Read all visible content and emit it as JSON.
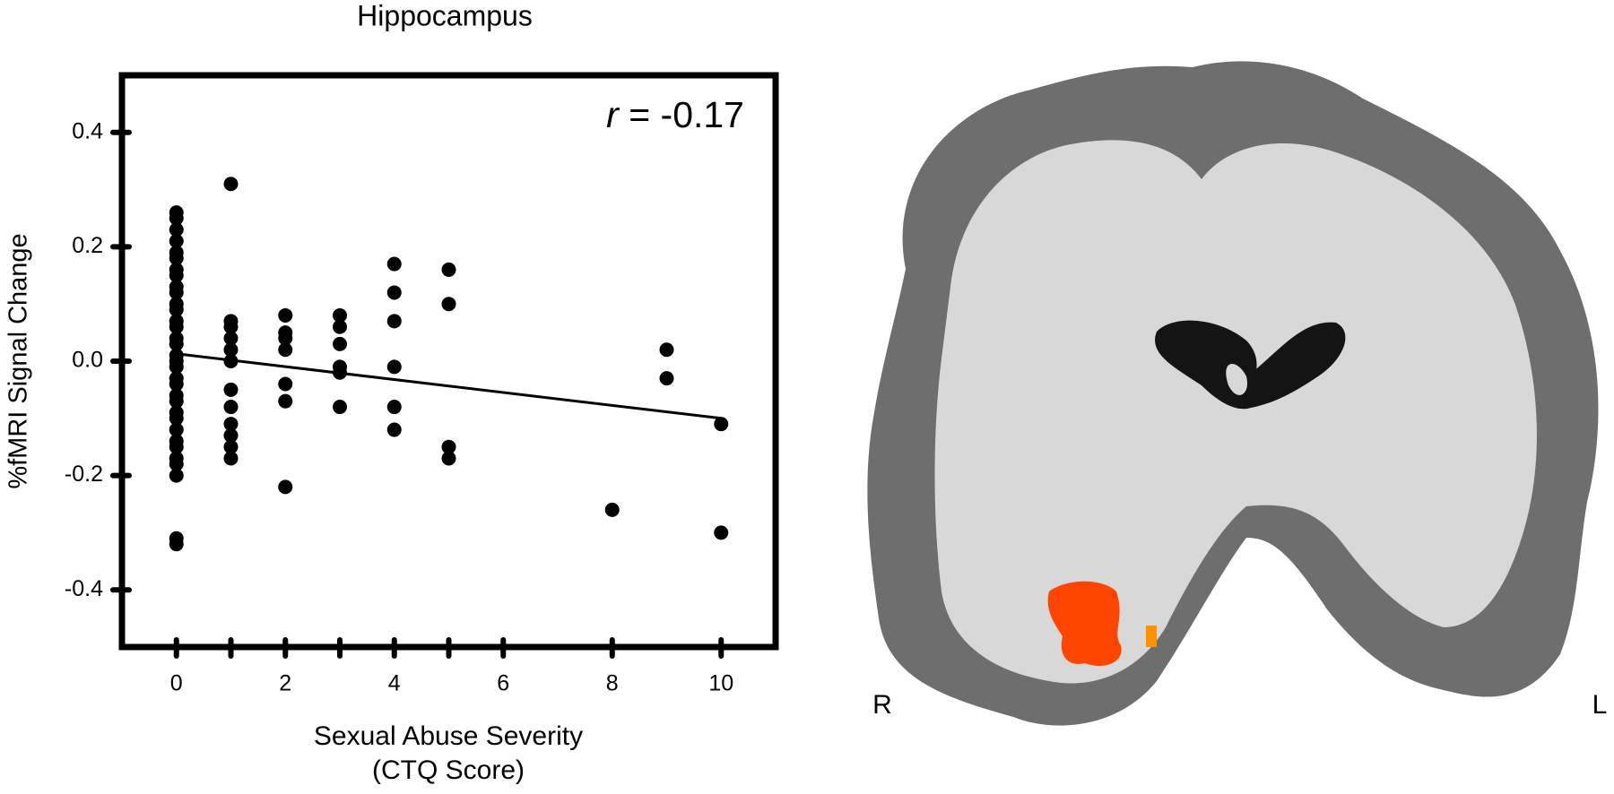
{
  "chart_data": {
    "type": "scatter",
    "title": "Hippocampus",
    "x_label": [
      "Sexual Abuse Severity",
      "(CTQ Score)"
    ],
    "y_label": "%fMRI Signal Change",
    "annotation": [
      "r",
      " = -0.17"
    ],
    "x": [
      0,
      0,
      0,
      0,
      0,
      0,
      0,
      0,
      0,
      0,
      0,
      0,
      0,
      0,
      0,
      0,
      0,
      0,
      0,
      0,
      0,
      0,
      0,
      0,
      0,
      0,
      0,
      0,
      0,
      0,
      0,
      0,
      0,
      1,
      1,
      1,
      1,
      1,
      1,
      1,
      1,
      1,
      1,
      1,
      1,
      2,
      2,
      2,
      2,
      2,
      2,
      2,
      3,
      3,
      3,
      3,
      3,
      3,
      4,
      4,
      4,
      4,
      4,
      4,
      5,
      5,
      5,
      5,
      8,
      9,
      9,
      10,
      10
    ],
    "y": [
      0.26,
      0.25,
      0.23,
      0.21,
      0.19,
      0.18,
      0.16,
      0.15,
      0.13,
      0.12,
      0.1,
      0.09,
      0.07,
      0.06,
      0.04,
      0.03,
      0.01,
      0,
      -0.01,
      -0.03,
      -0.04,
      -0.06,
      -0.07,
      -0.09,
      -0.1,
      -0.12,
      -0.14,
      -0.15,
      -0.17,
      -0.18,
      -0.2,
      -0.31,
      -0.32,
      0.31,
      0.07,
      0.06,
      0.04,
      0.02,
      0,
      -0.05,
      -0.08,
      -0.11,
      -0.13,
      -0.15,
      -0.17,
      0.08,
      0.05,
      0.04,
      0.02,
      -0.04,
      -0.07,
      -0.22,
      0.08,
      0.06,
      0.03,
      -0.01,
      -0.02,
      -0.08,
      0.17,
      0.12,
      0.07,
      -0.01,
      -0.08,
      -0.12,
      0.16,
      0.1,
      -0.15,
      -0.17,
      -0.26,
      0.02,
      -0.03,
      -0.11,
      -0.3
    ],
    "color": "#000000",
    "fit": {
      "x": [
        0,
        10
      ],
      "y": [
        0.013,
        -0.1
      ]
    },
    "xlim": [
      -1,
      11
    ],
    "xticks": [
      0,
      2,
      4,
      6,
      8,
      10
    ],
    "xminorticks": [
      1,
      3,
      5
    ],
    "ylim": [
      -0.5,
      0.5
    ],
    "yticks": [
      -0.4,
      -0.2,
      {
        "value": 0,
        "label": "0.0"
      },
      0.2,
      0.4
    ]
  },
  "image": {
    "labels": [
      "R",
      "L"
    ]
  }
}
